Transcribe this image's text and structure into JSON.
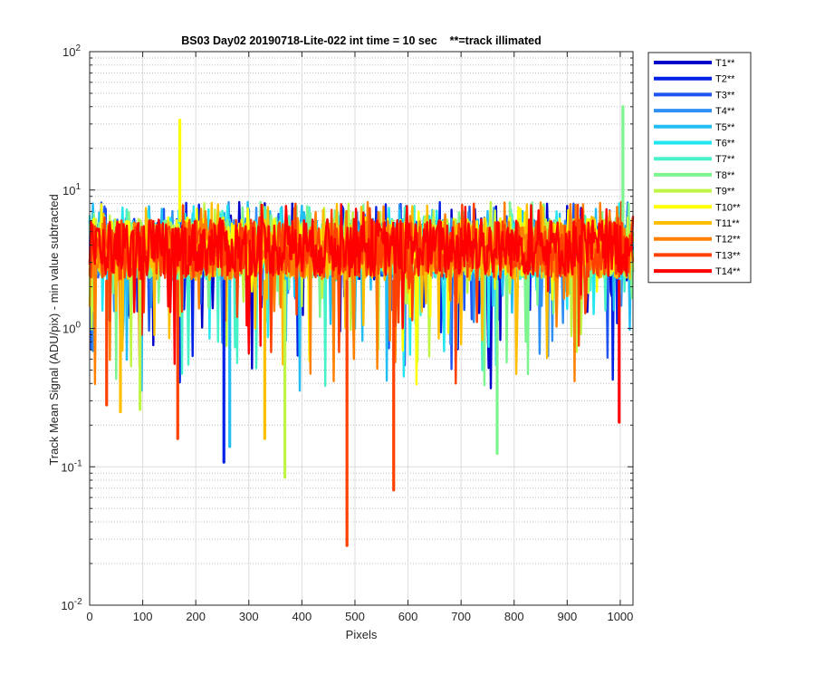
{
  "chart_data": {
    "type": "line",
    "title": "BS03 Day02 20190718-Lite-022 int time = 10 sec    **=track illimated",
    "xlabel": "Pixels",
    "ylabel": "Track Mean Signal (ADU/pix) - min value subtracted",
    "xlim": [
      0,
      1024
    ],
    "ylim": [
      0.01,
      100
    ],
    "yscale": "log",
    "grid": true,
    "legend_position": "outside-right",
    "x_ticks": [
      0,
      100,
      200,
      300,
      400,
      500,
      600,
      700,
      800,
      900,
      1000
    ],
    "x_tick_labels": [
      "0",
      "100",
      "200",
      "300",
      "400",
      "500",
      "600",
      "700",
      "800",
      "900",
      "1000"
    ],
    "y_ticks": [
      0.01,
      0.1,
      1,
      10,
      100
    ],
    "y_tick_bases": [
      "10",
      "10",
      "10",
      "10",
      "10"
    ],
    "y_tick_exponents": [
      "-2",
      "-1",
      "0",
      "1",
      "2"
    ],
    "series": [
      {
        "name": "T1**",
        "color": "#0000c9"
      },
      {
        "name": "T2**",
        "color": "#0022e6"
      },
      {
        "name": "T3**",
        "color": "#1e55f0"
      },
      {
        "name": "T4**",
        "color": "#2f8ff2"
      },
      {
        "name": "T5**",
        "color": "#22bdf2"
      },
      {
        "name": "T6**",
        "color": "#22e6f0"
      },
      {
        "name": "T7**",
        "color": "#48f2c8"
      },
      {
        "name": "T8**",
        "color": "#7cf58e"
      },
      {
        "name": "T9**",
        "color": "#c0f545"
      },
      {
        "name": "T10**",
        "color": "#ffff00"
      },
      {
        "name": "T11**",
        "color": "#ffbf00"
      },
      {
        "name": "T12**",
        "color": "#ff8000"
      },
      {
        "name": "T13**",
        "color": "#ff4000"
      },
      {
        "name": "T14**",
        "color": "#ff0000"
      }
    ],
    "spikes": [
      {
        "series": "T10**",
        "x": 170,
        "y": 32
      },
      {
        "series": "T8**",
        "x": 1005,
        "y": 40
      },
      {
        "series": "T13**",
        "x": 485,
        "y": 0.027
      },
      {
        "series": "T13**",
        "x": 573,
        "y": 0.068
      },
      {
        "series": "T2**",
        "x": 253,
        "y": 0.108
      },
      {
        "series": "T9**",
        "x": 368,
        "y": 0.084
      },
      {
        "series": "T8**",
        "x": 768,
        "y": 0.125
      },
      {
        "series": "T5**",
        "x": 264,
        "y": 0.14
      },
      {
        "series": "T13**",
        "x": 166,
        "y": 0.16
      },
      {
        "series": "T11**",
        "x": 330,
        "y": 0.16
      },
      {
        "series": "T14**",
        "x": 998,
        "y": 0.21
      },
      {
        "series": "T11**",
        "x": 58,
        "y": 0.25
      },
      {
        "series": "T9**",
        "x": 95,
        "y": 0.26
      },
      {
        "series": "T13**",
        "x": 32,
        "y": 0.28
      }
    ]
  }
}
